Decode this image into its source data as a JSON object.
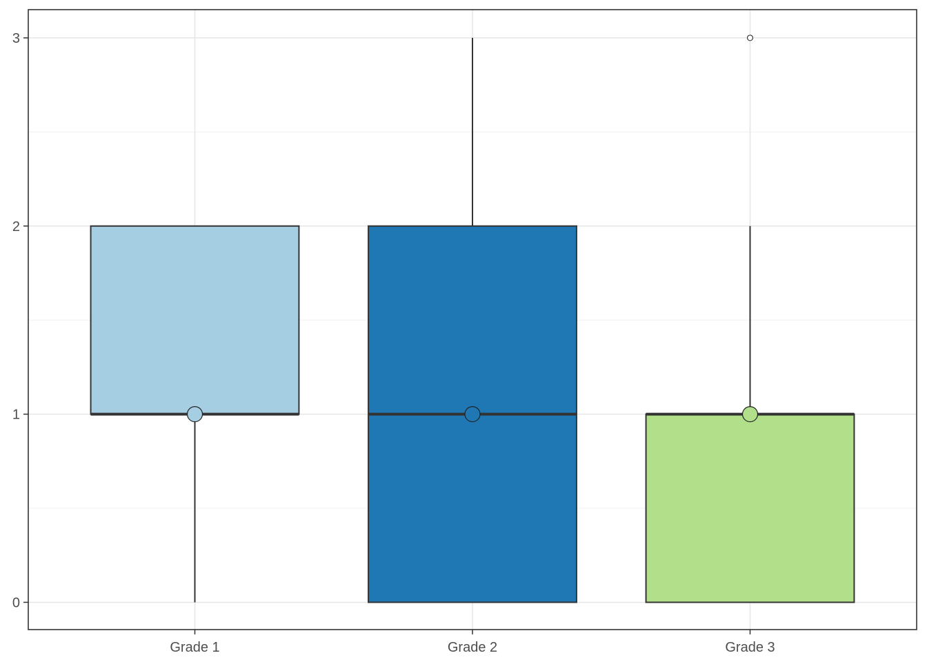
{
  "chart_data": {
    "type": "box",
    "title": "",
    "xlabel": "",
    "ylabel": "",
    "categories": [
      "Grade 1",
      "Grade 2",
      "Grade 3"
    ],
    "ylim": [
      -0.145,
      3.15
    ],
    "yticks": [
      0,
      1,
      2,
      3
    ],
    "ytick_labels": [
      "0",
      "1",
      "2",
      "3"
    ],
    "grid": true,
    "boxes": [
      {
        "category": "Grade 1",
        "whisker_low": 0,
        "q1": 1,
        "median": 1,
        "q3": 2,
        "whisker_high": 2,
        "mean": 1,
        "outliers": [],
        "color": "#A6CEE3"
      },
      {
        "category": "Grade 2",
        "whisker_low": 0,
        "q1": 0,
        "median": 1,
        "q3": 2,
        "whisker_high": 3,
        "mean": 1,
        "outliers": [],
        "color": "#1F78B4"
      },
      {
        "category": "Grade 3",
        "whisker_low": 0,
        "q1": 0,
        "median": 1,
        "q3": 1,
        "whisker_high": 2,
        "mean": 1,
        "outliers": [
          3
        ],
        "color": "#B2DF8A"
      }
    ]
  }
}
